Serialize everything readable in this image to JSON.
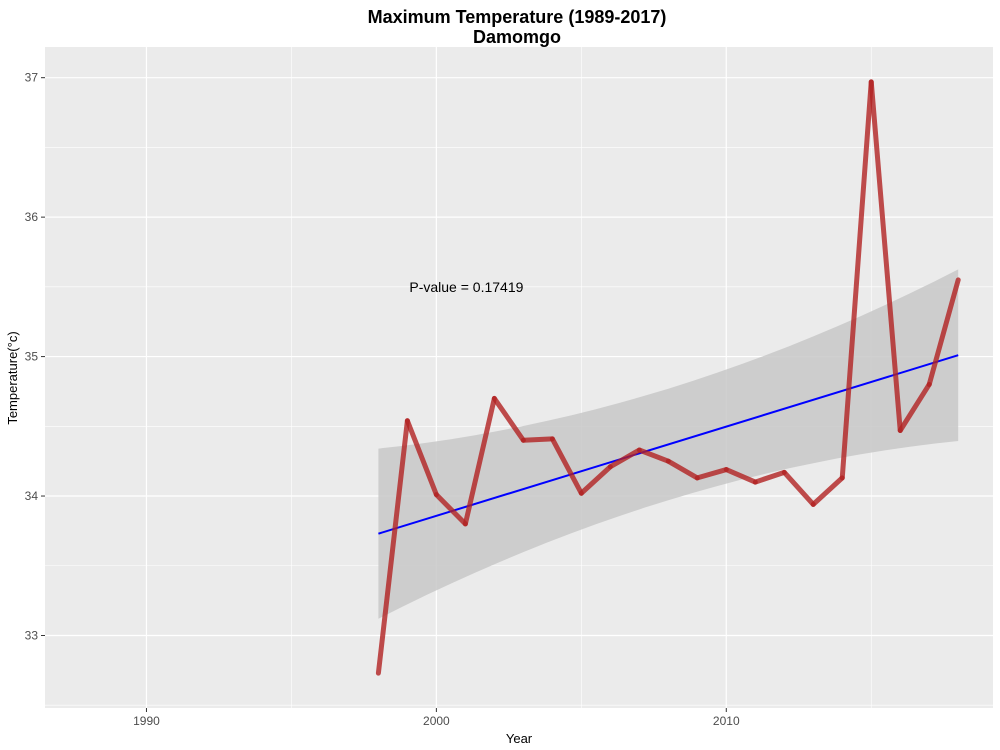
{
  "chart_data": {
    "type": "line",
    "title": "Maximum Temperature (1989-2017)",
    "subtitle": "Damomgo",
    "xlabel": "Year",
    "ylabel": "Temperature(°c)",
    "xlim": [
      1986.5,
      2019.2
    ],
    "ylim": [
      32.48,
      37.22
    ],
    "x_ticks": [
      1990,
      2000,
      2010
    ],
    "x_tick_labels": [
      "1990",
      "2000",
      "2010"
    ],
    "y_ticks": [
      33,
      34,
      35,
      36,
      37
    ],
    "y_tick_labels": [
      "33",
      "34",
      "35",
      "36",
      "37"
    ],
    "grid": true,
    "annotation": {
      "text": "P-value = 0.17419",
      "x": 2000,
      "y": 35.5
    },
    "series": [
      {
        "x": [
          1998,
          1999,
          2000,
          2001,
          2002,
          2003,
          2004,
          2005,
          2006,
          2007,
          2008,
          2009,
          2010,
          2011,
          2012,
          2013,
          2014,
          2015,
          2016,
          2017,
          2018
        ],
        "values": [
          32.73,
          34.54,
          34.01,
          33.8,
          34.7,
          34.4,
          34.41,
          34.02,
          34.21,
          34.33,
          34.25,
          34.13,
          34.19,
          34.1,
          34.17,
          33.94,
          34.13,
          36.97,
          34.47,
          34.8,
          35.55
        ],
        "color": "#b22222"
      }
    ],
    "trend": {
      "x": [
        1998,
        2018
      ],
      "values": [
        33.73,
        35.01
      ],
      "color": "#0000ff",
      "ci_upper": [
        34.34,
        35.64
      ],
      "ci_lower": [
        33.12,
        34.41
      ],
      "ci_color": "#c8c8c8"
    },
    "panel_background": "#ebebeb",
    "grid_color": "#ffffff"
  }
}
